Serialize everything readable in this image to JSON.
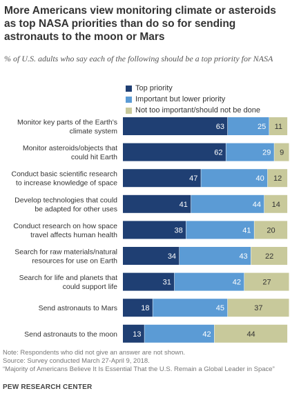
{
  "title": "More Americans view monitoring climate or asteroids as top NASA priorities than do so for sending astronauts to the moon or Mars",
  "subtitle": "% of U.S. adults who say each of the following should be a top priority for NASA",
  "notes": {
    "note": "Note: Respondents who did not give an answer are not shown.",
    "source": "Source: Survey conducted March 27-April 9, 2018.",
    "report": "“Majority of Americans Believe It Is Essential That the U.S. Remain a Global Leader in Space”",
    "org": "PEW RESEARCH CENTER"
  },
  "colors": {
    "top": "#1f3f73",
    "important": "#5b9bd5",
    "not_important": "#c8c99b"
  },
  "chart_data": {
    "type": "bar",
    "orientation": "horizontal",
    "stacked": true,
    "categories": [
      [
        "Monitor key parts of the Earth's",
        "climate system"
      ],
      [
        "Monitor asteroids/objects that",
        "could hit Earth"
      ],
      [
        "Conduct basic scientific research",
        "to increase knowledge of space"
      ],
      [
        "Develop technologies that could",
        "be adapted for other uses"
      ],
      [
        "Conduct research on how space",
        "travel affects human health"
      ],
      [
        "Search for raw materials/natural",
        "resources for use on Earth"
      ],
      [
        "Search for life and planets that",
        "could support life"
      ],
      [
        "Send astronauts to Mars"
      ],
      [
        "Send astronauts to the moon"
      ]
    ],
    "series": [
      {
        "name": "Top priority",
        "color": "#1f3f73",
        "label_color": "#ffffff",
        "values": [
          63,
          62,
          47,
          41,
          38,
          34,
          31,
          18,
          13
        ]
      },
      {
        "name": "Important but lower priority",
        "color": "#5b9bd5",
        "label_color": "#ffffff",
        "values": [
          25,
          29,
          40,
          44,
          41,
          43,
          42,
          45,
          42
        ]
      },
      {
        "name": "Not too important/should not be done",
        "color": "#c8c99b",
        "label_color": "#333333",
        "values": [
          11,
          9,
          12,
          14,
          20,
          22,
          27,
          37,
          44
        ]
      }
    ],
    "xlim": [
      0,
      100
    ],
    "legend_position": "top"
  }
}
